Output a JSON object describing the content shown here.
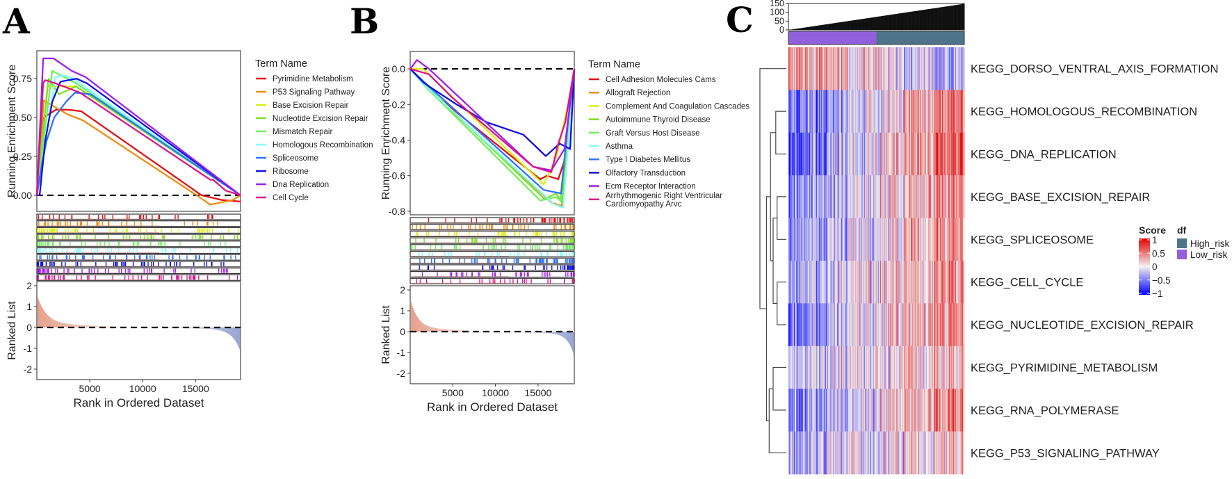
{
  "chart_data": [
    {
      "panel_label": "A",
      "type": "line",
      "ylabel": "Running Enrichment Score",
      "ylabel_bottom": "Ranked List",
      "xlabel": "Rank in Ordered Dataset",
      "xlim": [
        0,
        19250
      ],
      "ylim": [
        -0.103,
        0.929
      ],
      "yticks": [
        "0.00",
        "0.25",
        "0.50",
        "0.75"
      ],
      "yticks_values": [
        0,
        0.25,
        0.5,
        0.75
      ],
      "xticks": [
        "5000",
        "10000",
        "15000"
      ],
      "xticks_values": [
        5000,
        10000,
        15000
      ],
      "rank_yticks": [
        "2",
        "1",
        "0",
        "-1",
        "-2"
      ],
      "rank_yticks_values": [
        2,
        1,
        0,
        -1,
        -2
      ],
      "rank_ylim": [
        -2.5,
        2.2
      ],
      "hit_skew": "left",
      "legend_title": "Term Name",
      "series": [
        {
          "name": "Pyrimidine Metabolism",
          "color": "#e41010",
          "points": [
            [
              0,
              0
            ],
            [
              650,
              0.5
            ],
            [
              1800,
              0.55
            ],
            [
              3000,
              0.55
            ],
            [
              4200,
              0.54
            ],
            [
              15570,
              0
            ],
            [
              17500,
              -0.03
            ],
            [
              19250,
              -0.04
            ]
          ]
        },
        {
          "name": "P53 Signaling Pathway",
          "color": "#f08c10",
          "points": [
            [
              0,
              0
            ],
            [
              650,
              0.61
            ],
            [
              2900,
              0.52
            ],
            [
              4400,
              0.48
            ],
            [
              15100,
              0
            ],
            [
              16400,
              -0.06
            ],
            [
              18500,
              -0.03
            ],
            [
              19250,
              0
            ]
          ]
        },
        {
          "name": "Base Excision Repair",
          "color": "#d8f010",
          "points": [
            [
              0,
              0
            ],
            [
              1000,
              0.7
            ],
            [
              3700,
              0.7
            ],
            [
              19250,
              0
            ]
          ]
        },
        {
          "name": "Nucleotide Excision Repair",
          "color": "#80e020",
          "points": [
            [
              0,
              0
            ],
            [
              1100,
              0.75
            ],
            [
              2100,
              0.65
            ],
            [
              3700,
              0.7
            ],
            [
              19250,
              0
            ]
          ]
        },
        {
          "name": "Mismatch Repair",
          "color": "#70f060",
          "points": [
            [
              0,
              0
            ],
            [
              1450,
              0.8
            ],
            [
              3700,
              0.72
            ],
            [
              19250,
              0
            ]
          ]
        },
        {
          "name": "Homologous Recombination",
          "color": "#80ffff",
          "points": [
            [
              0,
              0
            ],
            [
              1770,
              0.76
            ],
            [
              2600,
              0.77
            ],
            [
              3400,
              0.75
            ],
            [
              19250,
              0
            ]
          ]
        },
        {
          "name": "Spliceosome",
          "color": "#3070ff",
          "points": [
            [
              0,
              0
            ],
            [
              470,
              0.2
            ],
            [
              920,
              0.35
            ],
            [
              1640,
              0.5
            ],
            [
              2750,
              0.6
            ],
            [
              3610,
              0.66
            ],
            [
              5060,
              0.65
            ],
            [
              19250,
              0
            ]
          ]
        },
        {
          "name": "Ribosome",
          "color": "#1010e0",
          "points": [
            [
              0,
              0
            ],
            [
              260,
              0
            ],
            [
              790,
              0.35
            ],
            [
              1450,
              0.6
            ],
            [
              2230,
              0.73
            ],
            [
              3740,
              0.75
            ],
            [
              4730,
              0.72
            ],
            [
              19250,
              0
            ]
          ]
        },
        {
          "name": "Dna Replication",
          "color": "#a020f0",
          "points": [
            [
              0,
              0
            ],
            [
              600,
              0.88
            ],
            [
              1580,
              0.88
            ],
            [
              3300,
              0.8
            ],
            [
              4600,
              0.76
            ],
            [
              19250,
              0
            ]
          ]
        },
        {
          "name": "Cell Cycle",
          "color": "#e0108a",
          "points": [
            [
              0,
              0
            ],
            [
              600,
              0.72
            ],
            [
              790,
              0.74
            ],
            [
              1770,
              0.72
            ],
            [
              4070,
              0.66
            ],
            [
              16400,
              0.1
            ],
            [
              16660,
              0.1
            ],
            [
              17850,
              0.03
            ],
            [
              19250,
              0
            ]
          ]
        }
      ]
    },
    {
      "panel_label": "B",
      "type": "line",
      "ylabel": "Running Enrichment Score",
      "ylabel_bottom": "Ranked List",
      "xlabel": "Rank in Ordered Dataset",
      "xlim": [
        0,
        19250
      ],
      "ylim": [
        -0.82,
        0.098
      ],
      "yticks": [
        "0.0",
        "-0.2",
        "-0.4",
        "-0.6",
        "-0.8"
      ],
      "yticks_values": [
        0,
        -0.2,
        -0.4,
        -0.6,
        -0.8
      ],
      "xticks": [
        "5000",
        "10000",
        "15000"
      ],
      "xticks_values": [
        5000,
        10000,
        15000
      ],
      "rank_yticks": [
        "2",
        "1",
        "0",
        "-1",
        "-2"
      ],
      "rank_yticks_values": [
        2,
        1,
        0,
        -1,
        -2
      ],
      "rank_ylim": [
        -2.5,
        2.2
      ],
      "hit_skew": "right",
      "legend_title": "Term Name",
      "series": [
        {
          "name": "Cell Adhesion Molecules Cams",
          "color": "#e41010",
          "points": [
            [
              0,
              0
            ],
            [
              2200,
              -0.12
            ],
            [
              15250,
              -0.62
            ],
            [
              16060,
              -0.6
            ],
            [
              17370,
              -0.62
            ],
            [
              18200,
              -0.5
            ],
            [
              19250,
              0
            ]
          ]
        },
        {
          "name": "Allograft Rejection",
          "color": "#f08c10",
          "points": [
            [
              0,
              0
            ],
            [
              2000,
              -0.11
            ],
            [
              16560,
              -0.75
            ],
            [
              17780,
              -0.77
            ],
            [
              19250,
              0
            ]
          ]
        },
        {
          "name": "Complement And Coagulation Cascades",
          "color": "#d8f010",
          "points": [
            [
              0,
              0
            ],
            [
              1500,
              0
            ],
            [
              15660,
              -0.65
            ],
            [
              17130,
              -0.5
            ],
            [
              18510,
              -0.2
            ],
            [
              19250,
              0
            ]
          ]
        },
        {
          "name": "Autoimmune Thyroid Disease",
          "color": "#80e020",
          "points": [
            [
              0,
              0
            ],
            [
              2000,
              -0.1
            ],
            [
              15740,
              -0.73
            ],
            [
              17130,
              -0.7
            ],
            [
              17780,
              -0.75
            ],
            [
              19250,
              0
            ]
          ]
        },
        {
          "name": "Graft Versus Host Disease",
          "color": "#70f060",
          "points": [
            [
              0,
              0
            ],
            [
              2000,
              -0.11
            ],
            [
              15250,
              -0.74
            ],
            [
              17130,
              -0.72
            ],
            [
              17600,
              -0.74
            ],
            [
              19250,
              0
            ]
          ]
        },
        {
          "name": "Asthma",
          "color": "#80ffff",
          "points": [
            [
              0,
              0
            ],
            [
              1870,
              -0.1
            ],
            [
              16880,
              -0.76
            ],
            [
              17940,
              -0.78
            ],
            [
              19250,
              0
            ]
          ]
        },
        {
          "name": "Type I Diabetes Mellitus",
          "color": "#3070ff",
          "points": [
            [
              0,
              0
            ],
            [
              2000,
              -0.09
            ],
            [
              15660,
              -0.68
            ],
            [
              17700,
              -0.7
            ],
            [
              18510,
              -0.3
            ],
            [
              19250,
              0
            ]
          ]
        },
        {
          "name": "Olfactory Transduction",
          "color": "#1010e0",
          "points": [
            [
              0,
              0
            ],
            [
              1630,
              -0.08
            ],
            [
              5460,
              -0.2
            ],
            [
              8970,
              -0.3
            ],
            [
              13290,
              -0.37
            ],
            [
              15900,
              -0.49
            ],
            [
              17540,
              -0.42
            ],
            [
              18760,
              -0.45
            ],
            [
              19250,
              0
            ]
          ]
        },
        {
          "name": "Ecm Receptor Interaction",
          "color": "#a020f0",
          "points": [
            [
              0,
              0
            ],
            [
              800,
              0.05
            ],
            [
              2200,
              0
            ],
            [
              14440,
              -0.55
            ],
            [
              16560,
              -0.57
            ],
            [
              18100,
              -0.45
            ],
            [
              19250,
              0
            ]
          ]
        },
        {
          "name": "Arrhythmogenic Right Ventricular Cardiomyopathy Arvc",
          "name_lines": [
            "Arrhythmogenic Right Ventricular",
            "Cardiomyopathy Arvc"
          ],
          "color": "#e0108a",
          "points": [
            [
              0,
              0
            ],
            [
              2200,
              -0.03
            ],
            [
              4890,
              -0.16
            ],
            [
              14440,
              -0.55
            ],
            [
              16560,
              -0.58
            ],
            [
              17370,
              -0.42
            ],
            [
              18200,
              -0.3
            ],
            [
              19250,
              0
            ]
          ]
        }
      ]
    },
    {
      "panel_label": "C",
      "type": "heatmap",
      "n_samples": 230,
      "top_bar": {
        "yticks": [
          "150",
          "100",
          "50",
          "0"
        ],
        "yticks_values": [
          150,
          100,
          50,
          0
        ],
        "ylim": [
          0,
          150
        ],
        "min_value": 0,
        "max_value": 148
      },
      "groups": [
        {
          "name": "Low_risk",
          "color": "#9360dd",
          "fraction": 0.5
        },
        {
          "name": "High_risk",
          "color": "#4e7489",
          "fraction": 0.5
        }
      ],
      "rows": [
        {
          "name": "KEGG_DORSO_VENTRAL_AXIS_FORMATION",
          "score_low_end": 0.4,
          "score_high_end": -0.3
        },
        {
          "name": "KEGG_HOMOLOGOUS_RECOMBINATION",
          "score_low_end": -0.6,
          "score_high_end": 0.55
        },
        {
          "name": "KEGG_DNA_REPLICATION",
          "score_low_end": -0.75,
          "score_high_end": 0.7
        },
        {
          "name": "KEGG_BASE_EXCISION_REPAIR",
          "score_low_end": -0.5,
          "score_high_end": 0.5
        },
        {
          "name": "KEGG_SPLICEOSOME",
          "score_low_end": -0.45,
          "score_high_end": 0.45
        },
        {
          "name": "KEGG_CELL_CYCLE",
          "score_low_end": -0.4,
          "score_high_end": 0.45
        },
        {
          "name": "KEGG_NUCLEOTIDE_EXCISION_REPAIR",
          "score_low_end": -0.5,
          "score_high_end": 0.5
        },
        {
          "name": "KEGG_PYRIMIDINE_METABOLISM",
          "score_low_end": -0.2,
          "score_high_end": 0.25
        },
        {
          "name": "KEGG_RNA_POLYMERASE",
          "score_low_end": -0.5,
          "score_high_end": 0.5
        },
        {
          "name": "KEGG_P53_SIGNALING_PATHWAY",
          "score_low_end": -0.25,
          "score_high_end": 0.15
        }
      ],
      "dendrogram": [
        {
          "a": "r1",
          "b": "r2",
          "id": "m1",
          "h": 0.4
        },
        {
          "a": "r3",
          "b": "r4",
          "id": "m2",
          "h": 0.35
        },
        {
          "a": "r5",
          "b": "r6",
          "id": "m3",
          "h": 0.35
        },
        {
          "a": "m2",
          "b": "m3",
          "id": "m4",
          "h": 0.5
        },
        {
          "a": "m1",
          "b": "m4",
          "id": "m5",
          "h": 0.6
        },
        {
          "a": "r7",
          "b": "r8",
          "id": "m6",
          "h": 0.5
        },
        {
          "a": "m6",
          "b": "r9",
          "id": "m7",
          "h": 0.65
        },
        {
          "a": "m5",
          "b": "m7",
          "id": "m8",
          "h": 0.75
        },
        {
          "a": "r0",
          "b": "m8",
          "id": "m9",
          "h": 1.0
        }
      ],
      "score_legend": {
        "title": "Score",
        "labels": [
          "1",
          "0.5",
          "0",
          "−0.5",
          "−1"
        ],
        "values": [
          1,
          0.5,
          0,
          -0.5,
          -1
        ],
        "colors": {
          "high": "#e00000",
          "mid": "#f2f0f0",
          "low": "#0000ff"
        }
      },
      "group_legend": {
        "title": "df",
        "labels": [
          "High_risk",
          "Low_risk"
        ]
      }
    }
  ]
}
